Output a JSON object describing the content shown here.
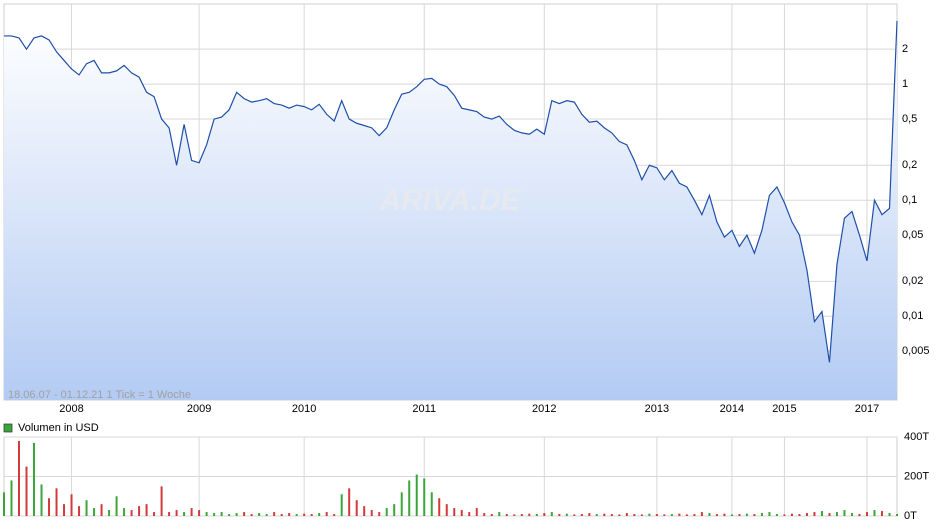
{
  "chart_data": [
    {
      "type": "line",
      "annotation": "18.06.07 - 01.12.21   1 Tick = 1 Woche",
      "watermark": "ARIVA.DE",
      "categories": [
        null,
        null,
        null,
        null,
        null,
        null,
        null,
        null,
        null,
        "2008",
        null,
        null,
        null,
        null,
        null,
        null,
        null,
        null,
        null,
        null,
        null,
        null,
        null,
        null,
        null,
        null,
        "2009",
        null,
        null,
        null,
        null,
        null,
        null,
        null,
        null,
        null,
        null,
        null,
        null,
        null,
        "2010",
        null,
        null,
        null,
        null,
        null,
        null,
        null,
        null,
        null,
        null,
        null,
        null,
        null,
        null,
        null,
        "2011",
        null,
        null,
        null,
        null,
        null,
        null,
        null,
        null,
        null,
        null,
        null,
        null,
        null,
        null,
        null,
        "2012",
        null,
        null,
        null,
        null,
        null,
        null,
        null,
        null,
        null,
        null,
        null,
        null,
        null,
        null,
        "2013",
        null,
        null,
        null,
        null,
        null,
        null,
        null,
        null,
        null,
        "2014",
        null,
        null,
        null,
        null,
        null,
        null,
        "2015",
        null,
        null,
        null,
        null,
        null,
        null,
        null,
        null,
        null,
        null,
        "2017",
        null,
        null,
        null,
        null
      ],
      "values": [
        2.6,
        2.6,
        2.5,
        2.0,
        2.5,
        2.6,
        2.4,
        1.9,
        1.6,
        1.35,
        1.2,
        1.5,
        1.6,
        1.25,
        1.25,
        1.3,
        1.45,
        1.25,
        1.15,
        0.85,
        0.78,
        0.5,
        0.42,
        0.2,
        0.45,
        0.22,
        0.21,
        0.3,
        0.5,
        0.52,
        0.6,
        0.85,
        0.75,
        0.7,
        0.72,
        0.75,
        0.68,
        0.66,
        0.62,
        0.66,
        0.64,
        0.6,
        0.67,
        0.55,
        0.48,
        0.72,
        0.5,
        0.46,
        0.44,
        0.42,
        0.36,
        0.42,
        0.6,
        0.82,
        0.85,
        0.95,
        1.1,
        1.12,
        1.0,
        0.95,
        0.8,
        0.62,
        0.6,
        0.58,
        0.52,
        0.5,
        0.53,
        0.45,
        0.4,
        0.38,
        0.37,
        0.41,
        0.37,
        0.72,
        0.68,
        0.72,
        0.7,
        0.55,
        0.47,
        0.48,
        0.42,
        0.38,
        0.32,
        0.3,
        0.22,
        0.15,
        0.2,
        0.19,
        0.15,
        0.18,
        0.14,
        0.13,
        0.1,
        0.075,
        0.11,
        0.065,
        0.048,
        0.055,
        0.04,
        0.05,
        0.035,
        0.055,
        0.11,
        0.13,
        0.095,
        0.065,
        0.05,
        0.025,
        0.009,
        0.011,
        0.004,
        0.028,
        0.07,
        0.08,
        0.05,
        0.03,
        0.1,
        0.075,
        0.085,
        3.5
      ],
      "color": "#1f4fa8",
      "log": true,
      "grid": true,
      "ylim": [
        0.0019,
        4.9
      ],
      "yticks": [
        2,
        1,
        {
          "value": 0.5,
          "label": "0,5"
        },
        {
          "value": 0.2,
          "label": "0,2"
        },
        {
          "value": 0.1,
          "label": "0,1"
        },
        {
          "value": 0.05,
          "label": "0,05"
        },
        {
          "value": 0.02,
          "label": "0,02"
        },
        {
          "value": 0.01,
          "label": "0,01"
        },
        {
          "value": 0.005,
          "label": "0,005"
        }
      ]
    },
    {
      "type": "bar",
      "series": [
        {
          "name": "Volumen in USD",
          "color": "#3aa53a",
          "values": [
            120000,
            180000,
            380000,
            250000,
            370000,
            160000,
            90000,
            140000,
            60000,
            110000,
            50000,
            80000,
            40000,
            60000,
            30000,
            100000,
            40000,
            30000,
            50000,
            60000,
            20000,
            150000,
            20000,
            30000,
            20000,
            40000,
            30000,
            20000,
            15000,
            20000,
            10000,
            15000,
            20000,
            10000,
            15000,
            10000,
            20000,
            10000,
            15000,
            10000,
            12000,
            10000,
            15000,
            20000,
            10000,
            110000,
            140000,
            80000,
            50000,
            30000,
            20000,
            40000,
            60000,
            120000,
            180000,
            210000,
            190000,
            120000,
            90000,
            60000,
            40000,
            30000,
            20000,
            40000,
            15000,
            10000,
            20000,
            10000,
            8000,
            10000,
            12000,
            10000,
            15000,
            20000,
            10000,
            12000,
            8000,
            10000,
            15000,
            10000,
            12000,
            10000,
            8000,
            15000,
            10000,
            8000,
            12000,
            10000,
            8000,
            10000,
            12000,
            8000,
            10000,
            20000,
            15000,
            10000,
            12000,
            8000,
            10000,
            12000,
            10000,
            15000,
            20000,
            10000,
            8000,
            12000,
            10000,
            15000,
            20000,
            25000,
            15000,
            20000,
            30000,
            15000,
            10000,
            20000,
            30000,
            25000,
            15000,
            10000
          ]
        }
      ],
      "down_color": "#d23a3a",
      "grid": true,
      "ylim": [
        0,
        400000
      ],
      "yticks": [
        {
          "value": 400000,
          "label": "400T"
        },
        {
          "value": 200000,
          "label": "200T"
        },
        {
          "value": 0,
          "label": "0T"
        }
      ]
    }
  ]
}
